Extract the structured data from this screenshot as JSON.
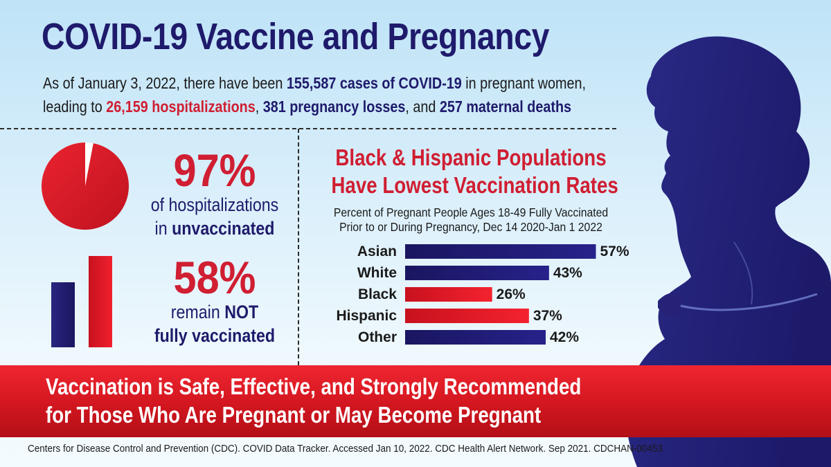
{
  "title": "COVID-19 Vaccine and Pregnancy",
  "intro": {
    "line1_prefix": "As of January 3, 2022, there have been ",
    "cases": "155,587 cases of COVID-19",
    "line1_suffix": " in pregnant women,",
    "line2_prefix": "leading to ",
    "hospitalizations": "26,159 hospitalizations",
    "sep1": ", ",
    "losses": "381 pregnancy losses",
    "sep2": ", and ",
    "deaths": "257 maternal deaths"
  },
  "stats": {
    "hospitalized": {
      "value": "97%",
      "fraction": 0.97,
      "line1": "of hospitalizations",
      "line2_prefix": "in ",
      "line2_bold": "unvaccinated"
    },
    "not_vaccinated": {
      "value": "58%",
      "line1_prefix": "remain ",
      "line1_bold": "NOT",
      "line2_bold": "fully vaccinated"
    }
  },
  "chart_data": {
    "type": "bar",
    "orientation": "horizontal",
    "title": "Black & Hispanic Populations Have Lowest Vaccination Rates",
    "title_lines": [
      "Black & Hispanic Populations",
      "Have Lowest Vaccination Rates"
    ],
    "subtitle_lines": [
      "Percent of Pregnant People Ages 18-49 Fully Vaccinated",
      "Prior to or During Pregnancy, Dec 14 2020-Jan 1 2022"
    ],
    "categories": [
      "Asian",
      "White",
      "Black",
      "Hispanic",
      "Other"
    ],
    "values": [
      57,
      43,
      26,
      37,
      42
    ],
    "value_labels": [
      "57%",
      "43%",
      "26%",
      "37%",
      "42%"
    ],
    "highlight": [
      false,
      false,
      true,
      true,
      false
    ],
    "unit": "%",
    "xlim": [
      0,
      60
    ]
  },
  "banner": {
    "line1": "Vaccination is Safe, Effective, and Strongly Recommended",
    "line2": "for Those Who Are Pregnant or May Become Pregnant"
  },
  "footer": "Centers for Disease Control and Prevention (CDC). COVID Data Tracker. Accessed Jan 10, 2022. CDC Health Alert Network. Sep 2021. CDCHAN-00453.",
  "colors": {
    "navy": "#1f1a6b",
    "red": "#d01e32",
    "bar_navy": "#1d1a6c",
    "bar_red": "#e3182b"
  }
}
